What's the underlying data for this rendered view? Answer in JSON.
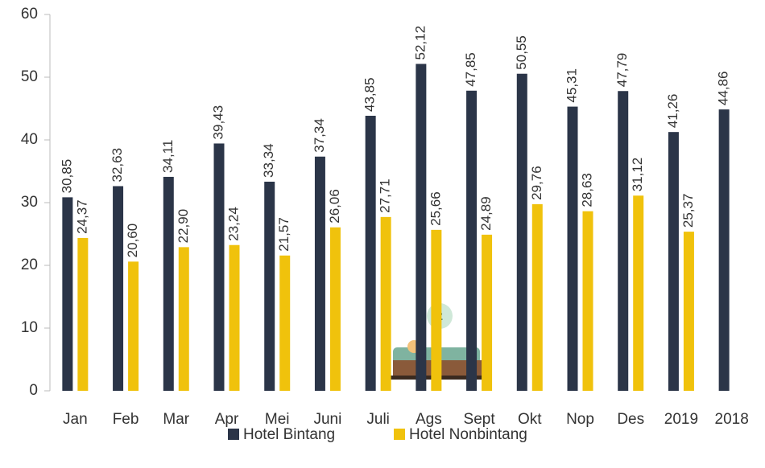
{
  "chart_data": {
    "type": "bar",
    "categories": [
      "Jan",
      "Feb",
      "Mar",
      "Apr",
      "Mei",
      "Juni",
      "Juli",
      "Ags",
      "Sept",
      "Okt",
      "Nop",
      "Des",
      "2019",
      "2018"
    ],
    "series": [
      {
        "name": "Hotel Bintang",
        "color": "#2b3548",
        "values": [
          30.85,
          32.63,
          34.11,
          39.43,
          33.34,
          37.34,
          43.85,
          52.12,
          47.85,
          50.55,
          45.31,
          47.79,
          41.26,
          44.86
        ],
        "value_labels": [
          "30,85",
          "32,63",
          "34,11",
          "39,43",
          "33,34",
          "37,34",
          "43,85",
          "52,12",
          "47,85",
          "50,55",
          "45,31",
          "47,79",
          "41,26",
          "44,86"
        ]
      },
      {
        "name": "Hotel Nonbintang",
        "color": "#f0c20c",
        "values": [
          24.37,
          20.6,
          22.9,
          23.24,
          21.57,
          26.06,
          27.71,
          25.66,
          24.89,
          29.76,
          28.63,
          31.12,
          25.37,
          null
        ],
        "value_labels": [
          "24,37",
          "20,60",
          "22,90",
          "23,24",
          "21,57",
          "26,06",
          "27,71",
          "25,66",
          "24,89",
          "29,76",
          "28,63",
          "31,12",
          "25,37",
          null
        ]
      }
    ],
    "ylim": [
      0,
      60
    ],
    "yticks": [
      0,
      10,
      20,
      30,
      40,
      50,
      60
    ],
    "grid": false,
    "legend": "bottom"
  }
}
